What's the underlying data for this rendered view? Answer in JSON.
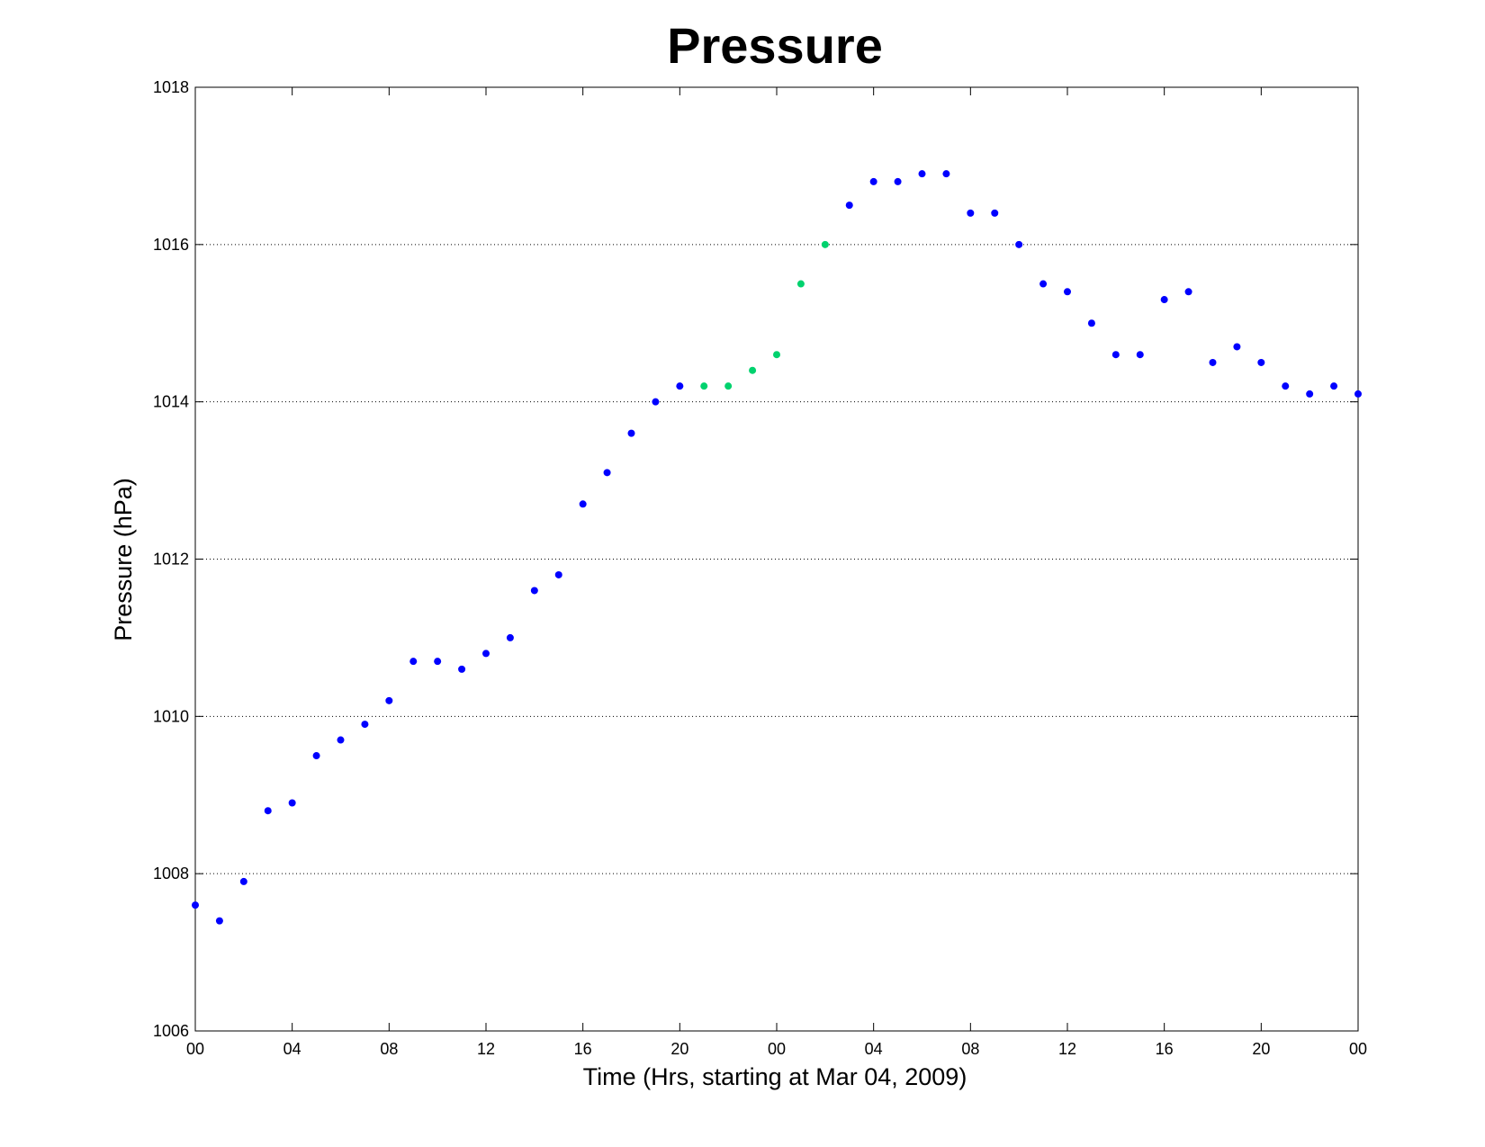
{
  "chart_data": {
    "type": "scatter",
    "title": "Pressure",
    "xlabel": "Time (Hrs, starting at Mar 04, 2009)",
    "ylabel": "Pressure (hPa)",
    "xlim": [
      0,
      48
    ],
    "ylim": [
      1006,
      1018
    ],
    "x_ticks": [
      {
        "value": 0,
        "label": "00"
      },
      {
        "value": 4,
        "label": "04"
      },
      {
        "value": 8,
        "label": "08"
      },
      {
        "value": 12,
        "label": "12"
      },
      {
        "value": 16,
        "label": "16"
      },
      {
        "value": 20,
        "label": "20"
      },
      {
        "value": 24,
        "label": "00"
      },
      {
        "value": 28,
        "label": "04"
      },
      {
        "value": 32,
        "label": "08"
      },
      {
        "value": 36,
        "label": "12"
      },
      {
        "value": 40,
        "label": "16"
      },
      {
        "value": 44,
        "label": "20"
      },
      {
        "value": 48,
        "label": "00"
      }
    ],
    "y_ticks": [
      1006,
      1008,
      1010,
      1012,
      1014,
      1016,
      1018
    ],
    "grid": "horizontal dotted",
    "series": [
      {
        "color": "#0000ff",
        "points": [
          [
            0,
            1007.6
          ],
          [
            1,
            1007.4
          ],
          [
            2,
            1007.9
          ],
          [
            3,
            1008.8
          ],
          [
            4,
            1008.9
          ],
          [
            5,
            1009.5
          ],
          [
            6,
            1009.7
          ],
          [
            7,
            1009.9
          ],
          [
            8,
            1010.2
          ],
          [
            9,
            1010.7
          ],
          [
            10,
            1010.7
          ],
          [
            11,
            1010.6
          ],
          [
            12,
            1010.8
          ],
          [
            13,
            1011.0
          ],
          [
            14,
            1011.6
          ],
          [
            15,
            1011.8
          ],
          [
            16,
            1012.7
          ],
          [
            17,
            1013.1
          ],
          [
            18,
            1013.6
          ],
          [
            19,
            1014.0
          ],
          [
            20,
            1014.2
          ],
          [
            27,
            1016.5
          ],
          [
            28,
            1016.8
          ],
          [
            29,
            1016.8
          ],
          [
            30,
            1016.9
          ],
          [
            31,
            1016.9
          ],
          [
            32,
            1016.4
          ],
          [
            33,
            1016.4
          ],
          [
            34,
            1016.0
          ],
          [
            35,
            1015.5
          ],
          [
            36,
            1015.4
          ],
          [
            37,
            1015.0
          ],
          [
            38,
            1014.6
          ],
          [
            39,
            1014.6
          ],
          [
            40,
            1015.3
          ],
          [
            41,
            1015.4
          ],
          [
            42,
            1014.5
          ],
          [
            43,
            1014.7
          ],
          [
            44,
            1014.5
          ],
          [
            45,
            1014.2
          ],
          [
            46,
            1014.1
          ],
          [
            47,
            1014.2
          ],
          [
            48,
            1014.1
          ]
        ]
      },
      {
        "color": "#00d26e",
        "points": [
          [
            21,
            1014.2
          ],
          [
            22,
            1014.2
          ],
          [
            23,
            1014.4
          ],
          [
            24,
            1014.6
          ],
          [
            25,
            1015.5
          ],
          [
            26,
            1016.0
          ]
        ]
      }
    ]
  }
}
